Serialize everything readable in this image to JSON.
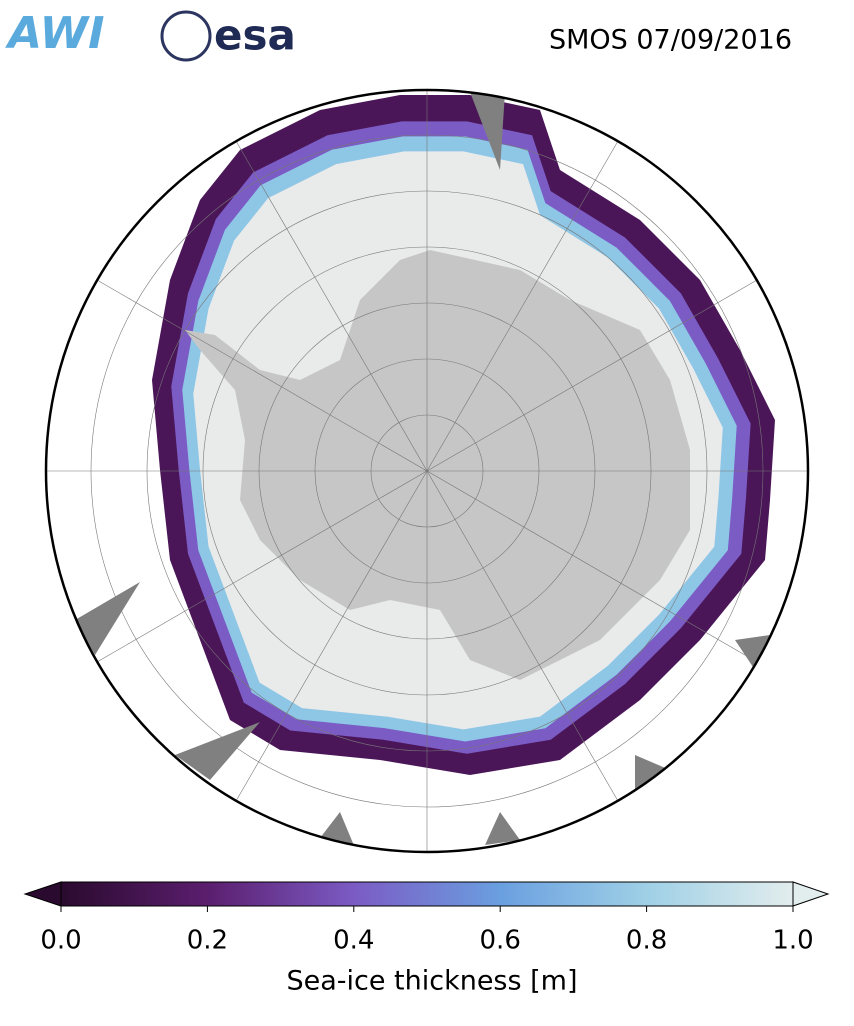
{
  "header": {
    "logos": [
      "AWI",
      "esa"
    ],
    "title": "SMOS 07/09/2016"
  },
  "colorbar": {
    "label": "Sea-ice thickness [m]",
    "lim": [
      0,
      1
    ],
    "ticks": [
      {
        "value": 0,
        "label": "0.0"
      },
      0.2,
      0.4,
      0.6,
      0.8,
      {
        "value": 1,
        "label": "1.0"
      }
    ],
    "colors": [
      "#2a0a2e",
      "#5b1e6e",
      "#7b5bc4",
      "#6a9fe0",
      "#9fd0e6",
      "#e2eded"
    ]
  }
}
